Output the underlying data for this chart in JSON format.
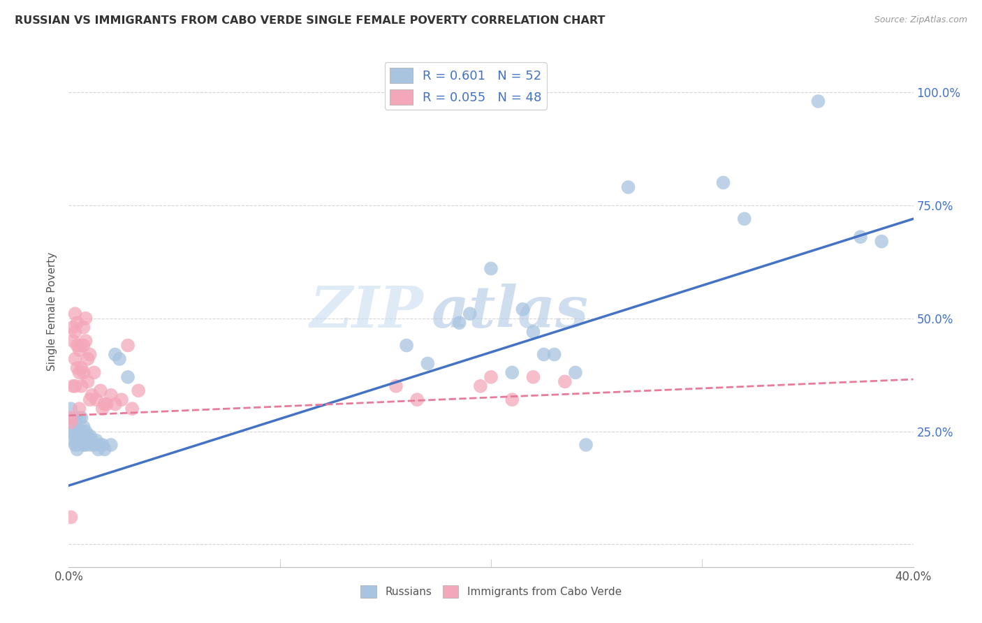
{
  "title": "RUSSIAN VS IMMIGRANTS FROM CABO VERDE SINGLE FEMALE POVERTY CORRELATION CHART",
  "source": "Source: ZipAtlas.com",
  "ylabel": "Single Female Poverty",
  "legend_russian": "R = 0.601   N = 52",
  "legend_cabo": "R = 0.055   N = 48",
  "legend_label_russian": "Russians",
  "legend_label_cabo": "Immigrants from Cabo Verde",
  "russian_color": "#a8c4e0",
  "cabo_color": "#f4a7b9",
  "russian_line_color": "#4472c4",
  "cabo_line_color": "#e87a9a",
  "watermark_zip": "ZIP",
  "watermark_atlas": "atlas",
  "background_color": "#ffffff",
  "grid_color": "#cccccc",
  "title_color": "#333333",
  "right_axis_color": "#4472c4",
  "xlim": [
    0.0,
    0.4
  ],
  "ylim": [
    -0.05,
    1.08
  ],
  "russian_scatter_x": [
    0.001,
    0.001,
    0.002,
    0.002,
    0.002,
    0.003,
    0.003,
    0.003,
    0.004,
    0.004,
    0.004,
    0.005,
    0.005,
    0.005,
    0.006,
    0.006,
    0.007,
    0.007,
    0.008,
    0.008,
    0.009,
    0.01,
    0.01,
    0.011,
    0.012,
    0.013,
    0.014,
    0.015,
    0.016,
    0.017,
    0.02,
    0.022,
    0.024,
    0.028,
    0.16,
    0.17,
    0.185,
    0.19,
    0.2,
    0.21,
    0.215,
    0.22,
    0.225,
    0.23,
    0.24,
    0.245,
    0.265,
    0.31,
    0.32,
    0.355,
    0.375,
    0.385
  ],
  "russian_scatter_y": [
    0.3,
    0.26,
    0.27,
    0.25,
    0.23,
    0.28,
    0.24,
    0.22,
    0.25,
    0.22,
    0.21,
    0.28,
    0.25,
    0.23,
    0.28,
    0.25,
    0.26,
    0.22,
    0.25,
    0.22,
    0.24,
    0.24,
    0.22,
    0.23,
    0.22,
    0.23,
    0.21,
    0.22,
    0.22,
    0.21,
    0.22,
    0.42,
    0.41,
    0.37,
    0.44,
    0.4,
    0.49,
    0.51,
    0.61,
    0.38,
    0.52,
    0.47,
    0.42,
    0.42,
    0.38,
    0.22,
    0.79,
    0.8,
    0.72,
    0.98,
    0.68,
    0.67
  ],
  "cabo_scatter_x": [
    0.001,
    0.001,
    0.001,
    0.002,
    0.002,
    0.002,
    0.003,
    0.003,
    0.003,
    0.003,
    0.004,
    0.004,
    0.004,
    0.005,
    0.005,
    0.005,
    0.006,
    0.006,
    0.006,
    0.007,
    0.007,
    0.007,
    0.008,
    0.008,
    0.009,
    0.009,
    0.01,
    0.01,
    0.011,
    0.012,
    0.013,
    0.015,
    0.016,
    0.017,
    0.018,
    0.02,
    0.022,
    0.025,
    0.028,
    0.03,
    0.033,
    0.155,
    0.165,
    0.195,
    0.2,
    0.21,
    0.22,
    0.235
  ],
  "cabo_scatter_y": [
    0.28,
    0.27,
    0.06,
    0.48,
    0.45,
    0.35,
    0.51,
    0.47,
    0.41,
    0.35,
    0.49,
    0.44,
    0.39,
    0.43,
    0.38,
    0.3,
    0.44,
    0.39,
    0.35,
    0.48,
    0.44,
    0.38,
    0.5,
    0.45,
    0.41,
    0.36,
    0.42,
    0.32,
    0.33,
    0.38,
    0.32,
    0.34,
    0.3,
    0.31,
    0.31,
    0.33,
    0.31,
    0.32,
    0.44,
    0.3,
    0.34,
    0.35,
    0.32,
    0.35,
    0.37,
    0.32,
    0.37,
    0.36
  ],
  "russian_line_x": [
    0.0,
    0.4
  ],
  "russian_line_y": [
    0.13,
    0.72
  ],
  "cabo_line_x": [
    0.0,
    0.4
  ],
  "cabo_line_y": [
    0.285,
    0.365
  ],
  "x_tick_positions": [
    0.0,
    0.1,
    0.2,
    0.3,
    0.4
  ],
  "y_tick_positions": [
    0.0,
    0.25,
    0.5,
    0.75,
    1.0
  ]
}
